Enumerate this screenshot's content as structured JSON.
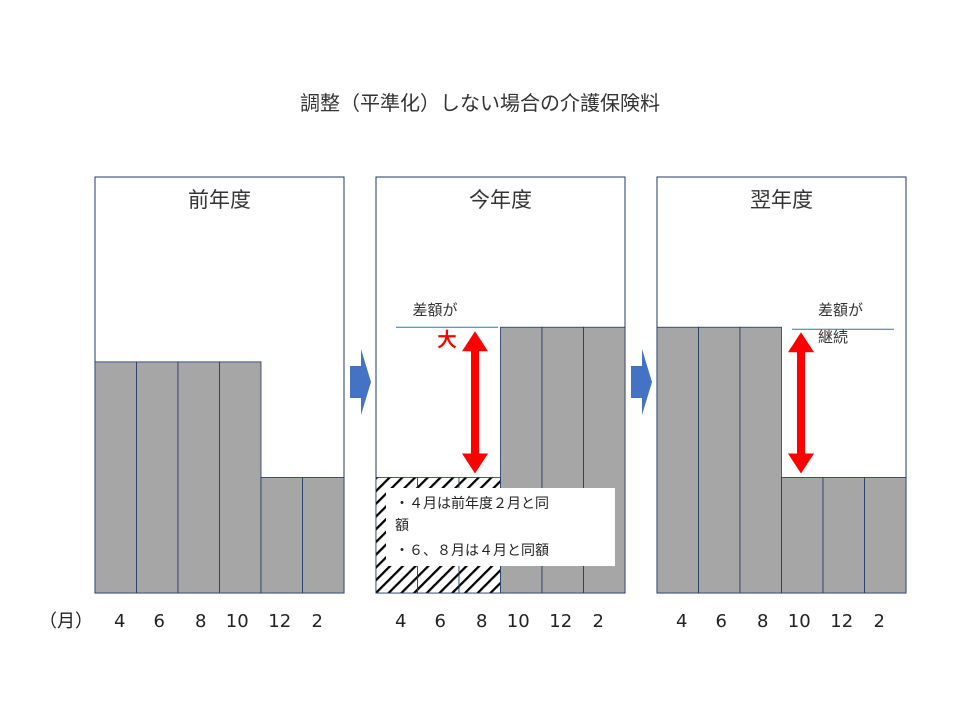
{
  "title": "調整（平準化）しない場合の介護保険料",
  "axis_unit_label": "（月）",
  "colors": {
    "bar_fill": "#a6a6a6",
    "bar_stroke": "#1f3864",
    "panel_stroke": "#1f3864",
    "arrow": "#ff0000",
    "step_arrow": "#4472c4",
    "guide_line": "#2e75b6",
    "hatch": "#000000"
  },
  "annotations": {
    "current_diff_line1": "差額が",
    "current_diff_big": "大",
    "next_diff_line1": "差額が",
    "next_diff_line2": "継続",
    "note_lines": [
      "・４月は前年度２月と同",
      "額",
      "・６、８月は４月と同額"
    ]
  },
  "icons": {
    "step_arrow": "right-arrow-icon",
    "diff_arrow": "double-headed-arrow-icon"
  },
  "chart_data": [
    {
      "type": "bar",
      "title": "前年度",
      "categories": [
        "4",
        "6",
        "8",
        "10",
        "12",
        "2"
      ],
      "values": [
        2,
        2,
        2,
        2,
        1,
        1
      ],
      "ylim": [
        0,
        3.6
      ],
      "hatched": [
        false,
        false,
        false,
        false,
        false,
        false
      ]
    },
    {
      "type": "bar",
      "title": "今年度",
      "categories": [
        "4",
        "6",
        "8",
        "10",
        "12",
        "2"
      ],
      "values": [
        1,
        1,
        1,
        2.3,
        2.3,
        2.3
      ],
      "ylim": [
        0,
        3.6
      ],
      "hatched": [
        true,
        true,
        true,
        false,
        false,
        false
      ]
    },
    {
      "type": "bar",
      "title": "翌年度",
      "categories": [
        "4",
        "6",
        "8",
        "10",
        "12",
        "2"
      ],
      "values": [
        2.3,
        2.3,
        2.3,
        1,
        1,
        1
      ],
      "ylim": [
        0,
        3.6
      ],
      "hatched": [
        false,
        false,
        false,
        false,
        false,
        false
      ]
    }
  ]
}
